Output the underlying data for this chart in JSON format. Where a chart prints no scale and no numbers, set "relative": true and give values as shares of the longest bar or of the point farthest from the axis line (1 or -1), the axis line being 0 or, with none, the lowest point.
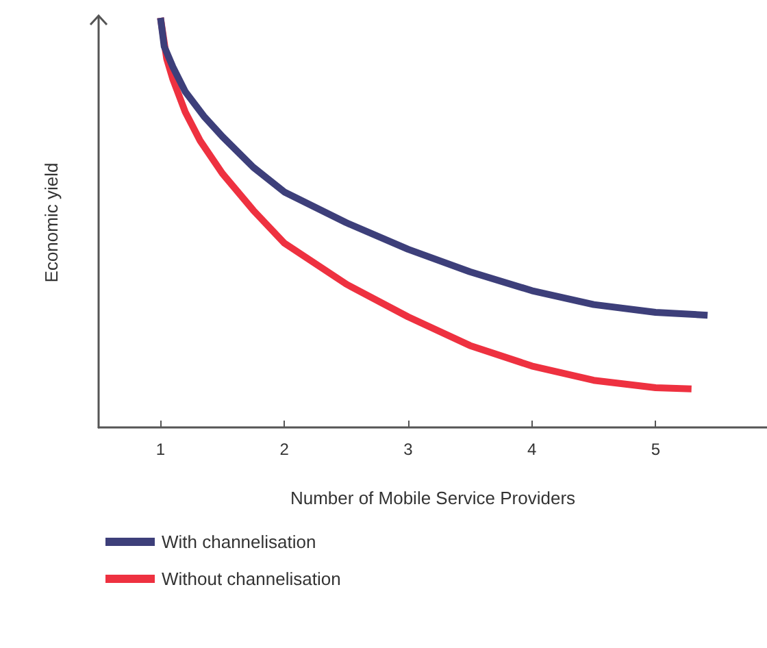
{
  "chart_data": {
    "type": "line",
    "relative": true,
    "xlabel": "Number of Mobile Service Providers",
    "ylabel": "Economic yield",
    "xlim": [
      0.5,
      5.9
    ],
    "xticks": [
      1,
      2,
      3,
      4,
      5
    ],
    "grid": false,
    "legend": "bottom",
    "marker": "none",
    "line_style": "solid",
    "series": [
      {
        "name": "With channelisation",
        "color": "#3d3f7a",
        "x": [
          1,
          1.03,
          1.1,
          1.2,
          1.35,
          1.5,
          1.75,
          2,
          2.5,
          3,
          3.5,
          4,
          4.5,
          5,
          5.42
        ],
        "values": [
          1,
          0.93,
          0.88,
          0.82,
          0.76,
          0.71,
          0.635,
          0.575,
          0.5,
          0.435,
          0.38,
          0.334,
          0.3,
          0.281,
          0.274
        ]
      },
      {
        "name": "Without channelisation",
        "color": "#ee3140",
        "x": [
          1,
          1.05,
          1.1,
          1.2,
          1.32,
          1.5,
          1.75,
          2,
          2.5,
          3,
          3.5,
          4,
          4.5,
          5,
          5.29
        ],
        "values": [
          1,
          0.9,
          0.85,
          0.77,
          0.7,
          0.62,
          0.53,
          0.45,
          0.35,
          0.27,
          0.2,
          0.15,
          0.115,
          0.097,
          0.094
        ]
      }
    ]
  }
}
